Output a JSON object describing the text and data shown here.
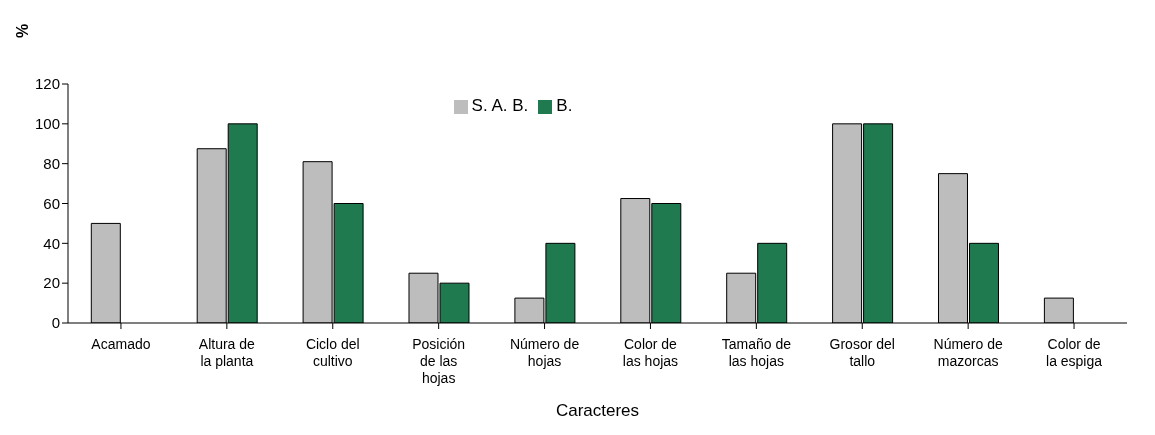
{
  "chart_data": {
    "type": "bar",
    "ylabel": "%",
    "xlabel": "Caracteres",
    "categories": [
      "Acamado",
      "Altura de la planta",
      "Ciclo del cultivo",
      "Posición de las hojas",
      "Número de hojas",
      "Color de las hojas",
      "Tamaño de las hojas",
      "Grosor del tallo",
      "Número de mazorcas",
      "Color de la espiga"
    ],
    "series": [
      {
        "name": "S. A. B.",
        "color": "#bdbdbd",
        "values": [
          50,
          87.5,
          81,
          25,
          12.5,
          62.5,
          25,
          100,
          75,
          12.5
        ]
      },
      {
        "name": "B.",
        "color": "#1f7a50",
        "values": [
          0,
          100,
          60,
          20,
          40,
          60,
          40,
          100,
          40,
          0
        ]
      }
    ],
    "ylim": [
      0,
      120
    ],
    "yticks": [
      0,
      20,
      40,
      60,
      80,
      100,
      120
    ],
    "grid": false,
    "legend": "top"
  }
}
